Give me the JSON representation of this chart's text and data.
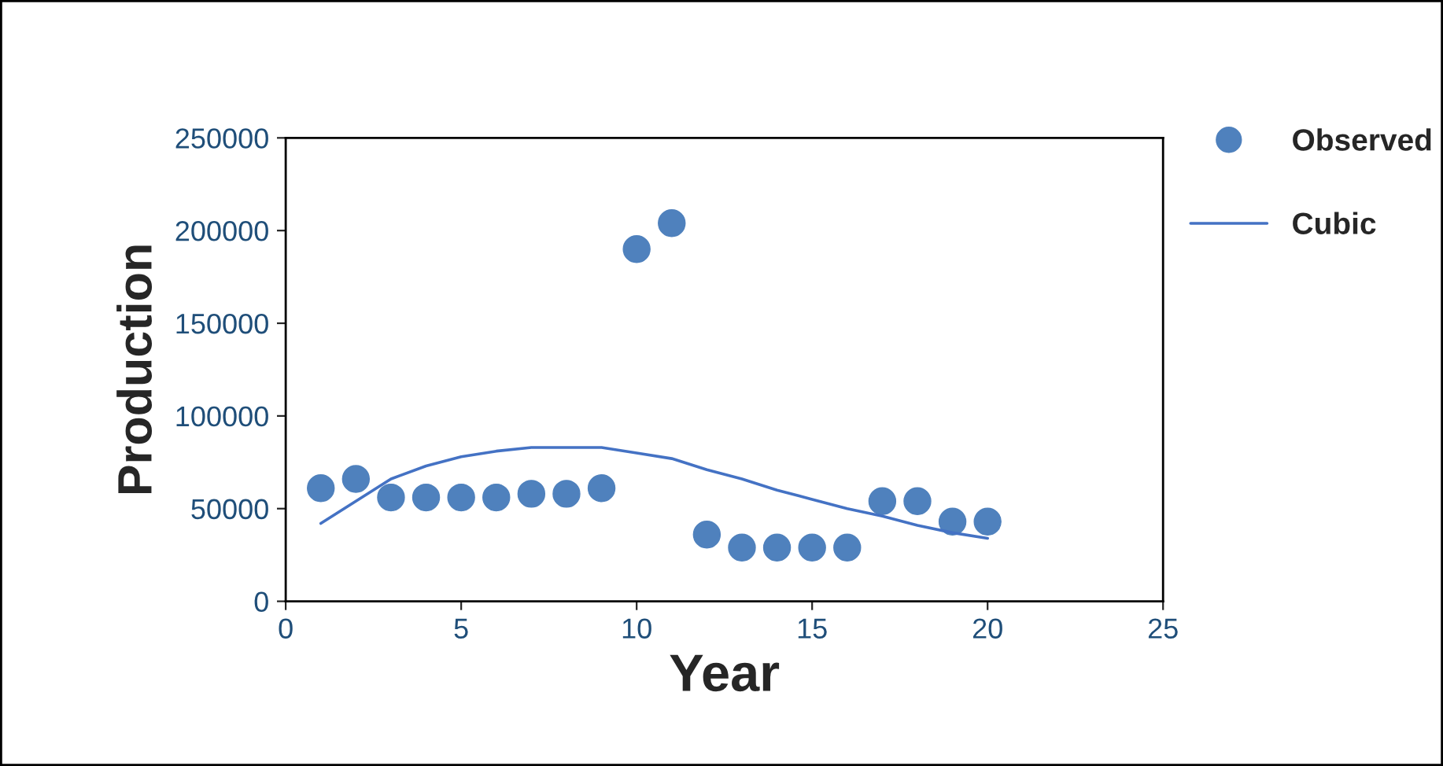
{
  "chart_data": {
    "type": "scatter",
    "xlabel": "Year",
    "ylabel": "Production",
    "xlim": [
      0,
      25
    ],
    "xticks": [
      0,
      5,
      10,
      15,
      20,
      25
    ],
    "ylim": [
      0,
      250000
    ],
    "yticks": [
      0,
      50000,
      100000,
      150000,
      200000,
      250000
    ],
    "grid": false,
    "legend": "top right",
    "marker": "circle",
    "series": [
      {
        "name": "Observed",
        "color": "#4f81bd",
        "x": [
          1,
          2,
          3,
          4,
          5,
          6,
          7,
          8,
          9,
          10,
          11,
          12,
          13,
          14,
          15,
          16,
          17,
          18,
          19,
          20
        ],
        "values": [
          61000,
          66000,
          56000,
          56000,
          56000,
          56000,
          58000,
          58000,
          61000,
          190000,
          204000,
          36000,
          29000,
          29000,
          29000,
          29000,
          54000,
          54000,
          43000,
          43000
        ]
      },
      {
        "name": "Cubic",
        "type": "line",
        "color": "#4472c4",
        "marker": "none",
        "x": [
          1,
          2,
          3,
          4,
          5,
          6,
          7,
          8,
          9,
          10,
          11,
          12,
          13,
          14,
          15,
          16,
          17,
          18,
          19,
          20
        ],
        "values": [
          42000,
          54000,
          66000,
          73000,
          78000,
          81000,
          83000,
          83000,
          83000,
          80000,
          77000,
          71000,
          66000,
          60000,
          55000,
          50000,
          46000,
          41000,
          37000,
          34000
        ]
      }
    ]
  }
}
